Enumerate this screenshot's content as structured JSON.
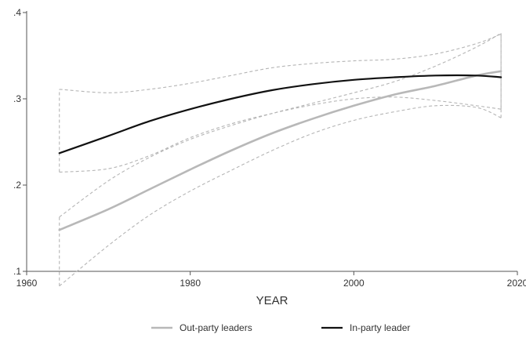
{
  "chart_data": {
    "type": "line",
    "title": "",
    "xlabel": "YEAR",
    "ylabel": "",
    "xlim": [
      1960,
      2020
    ],
    "ylim": [
      0.1,
      0.4
    ],
    "x_ticks": [
      1960,
      1980,
      2000,
      2020
    ],
    "x_tick_labels": [
      "1960",
      "1980",
      "2000",
      "2020"
    ],
    "y_ticks": [
      0.1,
      0.2,
      0.3,
      0.4
    ],
    "y_tick_labels": [
      ".1",
      ".2",
      ".3",
      ".4"
    ],
    "grid": false,
    "legend_position": "bottom",
    "x": [
      1964,
      1970,
      1975,
      1980,
      1985,
      1990,
      1995,
      2000,
      2005,
      2010,
      2015,
      2018
    ],
    "series": [
      {
        "name": "Out-party leaders",
        "color": "#b8b8b8",
        "style": "solid",
        "values": [
          0.148,
          0.172,
          0.195,
          0.218,
          0.24,
          0.26,
          0.277,
          0.292,
          0.305,
          0.315,
          0.327,
          0.332
        ],
        "ci_lower": [
          0.083,
          0.13,
          0.165,
          0.193,
          0.217,
          0.24,
          0.26,
          0.275,
          0.285,
          0.292,
          0.29,
          0.278
        ],
        "ci_upper": [
          0.163,
          0.205,
          0.232,
          0.253,
          0.269,
          0.283,
          0.295,
          0.307,
          0.32,
          0.338,
          0.36,
          0.376
        ]
      },
      {
        "name": "In-party leader",
        "color": "#111111",
        "style": "solid",
        "values": [
          0.237,
          0.257,
          0.274,
          0.288,
          0.3,
          0.31,
          0.317,
          0.322,
          0.325,
          0.327,
          0.327,
          0.325
        ],
        "ci_lower": [
          0.215,
          0.219,
          0.234,
          0.255,
          0.271,
          0.283,
          0.293,
          0.3,
          0.302,
          0.298,
          0.292,
          0.288
        ],
        "ci_upper": [
          0.311,
          0.307,
          0.311,
          0.318,
          0.327,
          0.336,
          0.341,
          0.344,
          0.346,
          0.352,
          0.364,
          0.375
        ]
      }
    ]
  }
}
